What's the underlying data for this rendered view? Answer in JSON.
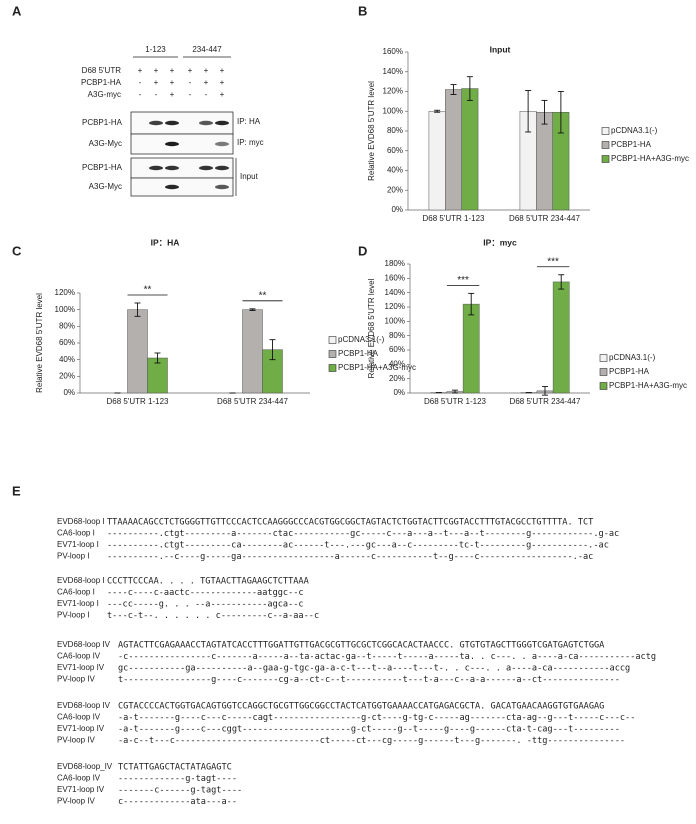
{
  "panel_labels": [
    "A",
    "B",
    "C",
    "D",
    "E"
  ],
  "blot": {
    "groups": [
      "1-123",
      "234-447"
    ],
    "rows": [
      {
        "label": "D68 5'UTR",
        "signs": [
          "+",
          "+",
          "+",
          "+",
          "+",
          "+"
        ]
      },
      {
        "label": "PCBP1-HA",
        "signs": [
          "-",
          "+",
          "+",
          "-",
          "+",
          "+"
        ]
      },
      {
        "label": "A3G-myc",
        "signs": [
          "-",
          "-",
          "+",
          "-",
          "-",
          "+"
        ]
      }
    ],
    "bands": [
      {
        "label": "PCBP1-HA",
        "note": "IP: HA"
      },
      {
        "label": "A3G-Myc",
        "note": "IP: myc"
      },
      {
        "label": "PCBP1-HA"
      },
      {
        "label": "A3G-Myc"
      }
    ],
    "input_label": "Input"
  },
  "chart_data": [
    {
      "type": "bar",
      "title": "Input",
      "ylabel": "Relative EVD68 5'UTR level",
      "categories": [
        "D68 5'UTR 1-123",
        "D68 5'UTR 234-447"
      ],
      "series": [
        {
          "name": "pCDNA3.1(-)",
          "color": "#f2f2f2",
          "values": [
            100,
            100
          ],
          "errors": [
            1,
            21
          ]
        },
        {
          "name": "PCBP1-HA",
          "color": "#b4b0ad",
          "values": [
            122,
            99
          ],
          "errors": [
            5,
            12
          ]
        },
        {
          "name": "PCBP1-HA+A3G-myc",
          "color": "#70ad47",
          "values": [
            123,
            99
          ],
          "errors": [
            12,
            21
          ]
        }
      ],
      "ylim": [
        0,
        160
      ],
      "yticks": [
        {
          "value": 0,
          "label": "0%"
        },
        {
          "value": 20,
          "label": "20%"
        },
        {
          "value": 40,
          "label": "40%"
        },
        {
          "value": 60,
          "label": "60%"
        },
        {
          "value": 80,
          "label": "80%"
        },
        {
          "value": 100,
          "label": "100%"
        },
        {
          "value": 120,
          "label": "120%"
        },
        {
          "value": 140,
          "label": "140%"
        },
        {
          "value": 160,
          "label": "160%"
        }
      ],
      "legend": "right"
    },
    {
      "type": "bar",
      "title": "IP：HA",
      "ylabel": "Relative EVD68 5'UTR level",
      "categories": [
        "D68 5'UTR 1-123",
        "D68 5'UTR 234-447"
      ],
      "series": [
        {
          "name": "pCDNA3.1(-)",
          "color": "#f2f2f2",
          "values": [
            0,
            0
          ],
          "errors": [
            0,
            0
          ]
        },
        {
          "name": "PCBP1-HA",
          "color": "#b4b0ad",
          "values": [
            100,
            100
          ],
          "errors": [
            8,
            1
          ]
        },
        {
          "name": "PCBP1-HA+A3G-myc",
          "color": "#70ad47",
          "values": [
            42,
            52
          ],
          "errors": [
            6,
            12
          ]
        }
      ],
      "ylim": [
        0,
        120
      ],
      "yticks": [
        {
          "value": 0,
          "label": "0%"
        },
        {
          "value": 20,
          "label": "20%"
        },
        {
          "value": 40,
          "label": "40%"
        },
        {
          "value": 60,
          "label": "60%"
        },
        {
          "value": 80,
          "label": "80%"
        },
        {
          "value": 100,
          "label": "100%"
        },
        {
          "value": 120,
          "label": "120%"
        }
      ],
      "annotations": [
        "**",
        "**"
      ],
      "legend": "right"
    },
    {
      "type": "bar",
      "title": "IP：myc",
      "ylabel": "Relative EVD68 5'UTR level",
      "categories": [
        "D68 5'UTR 1-123",
        "D68 5'UTR 234-447"
      ],
      "series": [
        {
          "name": "pCDNA3.1(-)",
          "color": "#f2f2f2",
          "values": [
            0.5,
            0.5
          ],
          "errors": [
            0,
            0
          ]
        },
        {
          "name": "PCBP1-HA",
          "color": "#b4b0ad",
          "values": [
            2,
            3
          ],
          "errors": [
            2,
            6
          ]
        },
        {
          "name": "PCBP1-HA+A3G-myc",
          "color": "#70ad47",
          "values": [
            124,
            155
          ],
          "errors": [
            15,
            10
          ]
        }
      ],
      "ylim": [
        0,
        180
      ],
      "yticks": [
        {
          "value": 0,
          "label": "0%"
        },
        {
          "value": 20,
          "label": "20%"
        },
        {
          "value": 40,
          "label": "40%"
        },
        {
          "value": 60,
          "label": "60%"
        },
        {
          "value": 80,
          "label": "80%"
        },
        {
          "value": 100,
          "label": "100%"
        },
        {
          "value": 120,
          "label": "120%"
        },
        {
          "value": 140,
          "label": "140%"
        },
        {
          "value": 160,
          "label": "160%"
        },
        {
          "value": 180,
          "label": "180%"
        }
      ],
      "annotations": [
        "***",
        "***"
      ],
      "legend": "right"
    }
  ],
  "alignment": {
    "blocks": [
      {
        "rows": [
          {
            "name": "EVD68-loop I",
            "seq": "TTAAAACAGCCTCTGGGGTTGTTCCCACTCCAAGGGCCCACGTGGCGGCTAGTACTCTGGTACTTCGGTACCTTTGTACGCCTGTTTTA. TCT"
          },
          {
            "name": "CA6-loop I",
            "seq": "----------.ctgt---------a-------ctac-----------gc-----c---a---a--t---a--t--------g------------.g-ac"
          },
          {
            "name": "EV71-loop I",
            "seq": "----------.ctgt---------ca--------ac------t---.---gc---a--c---------tc-t---------g-----------.-ac"
          },
          {
            "name": "PV-loop I",
            "seq": "----------.--c----g-----ga------------------a------c-----------t--g----c------------------.-ac"
          }
        ]
      },
      {
        "rows": [
          {
            "name": "EVD68-loop I",
            "seq": "CCCTTCCCAA. . . . TGTAACTTAGAAGCTCTTAAA"
          },
          {
            "name": "CA6-loop I",
            "seq": "----c----c-aactc-------------aatggc--c"
          },
          {
            "name": "EV71-loop I",
            "seq": "---cc-----g. . . --a-----------agca--c"
          },
          {
            "name": "PV-loop  I",
            "seq": "t---c-t--. . . . . . c---------c--a-aa--c"
          }
        ]
      },
      {
        "rows": [
          {
            "name": "EVD68-loop IV",
            "seq": "AGTACTTCGAGAAACCTAGTATCACCTTTGGATTGTTGACGCGTTGCGCTCGGCACACTAACCC. GTGTGTAGCTTGGGTCGATGAGTCTGGA"
          },
          {
            "name": "CA6-loop IV",
            "seq": "-c----------------c-------a-----a--ta-actac-ga--t-----t-----a-----ta. . c---. . a----a-ca-----------actg"
          },
          {
            "name": "EV71-loop IV",
            "seq": "gc-----------ga----------a--gaa-g-tgc-ga-a-c-t---t--a----t---t-. . c---. . a----a-ca-----------accg"
          },
          {
            "name": "PV-loop IV",
            "seq": "t-----------------g----c-------cg-a--ct-c--t-----------t---t-a---c--a-a------a--ct---------------"
          }
        ]
      },
      {
        "rows": [
          {
            "name": "EVD68-loop IV",
            "seq": "CGTACCCCACTGGTGACAGTGGTCCAGGCTGCGTTGGCGGCCTACTCATGGTGAAAACCATGAGACGCTA. GACATGAACAAGGTGTGAAGAG"
          },
          {
            "name": "CA6-loop IV",
            "seq": "-a-t-------g----c---c-----cagt-----------------g-ct----g-tg-c-----ag-------cta-ag--g---t-----c---c--"
          },
          {
            "name": "EV71-loop IV",
            "seq": "-a-t-------g----c---cggt---------------------g-ct-----g--t-----g----g------cta-t-cag---t---------"
          },
          {
            "name": "PV-loop IV",
            "seq": "-a-c--t---c----------------------------ct-----ct---cg-----g------t---g-------. -ttg---------------"
          }
        ]
      },
      {
        "rows": [
          {
            "name": "EVD68-loop_IV",
            "seq": "TCTATTGAGCTACTATAGAGTC"
          },
          {
            "name": "CA6-loop IV",
            "seq": "-------------g-tagt----"
          },
          {
            "name": "EV71-loop IV",
            "seq": "-------c------g-tagt----"
          },
          {
            "name": "PV-loop IV",
            "seq": "c-------------ata---a--"
          }
        ]
      }
    ]
  }
}
